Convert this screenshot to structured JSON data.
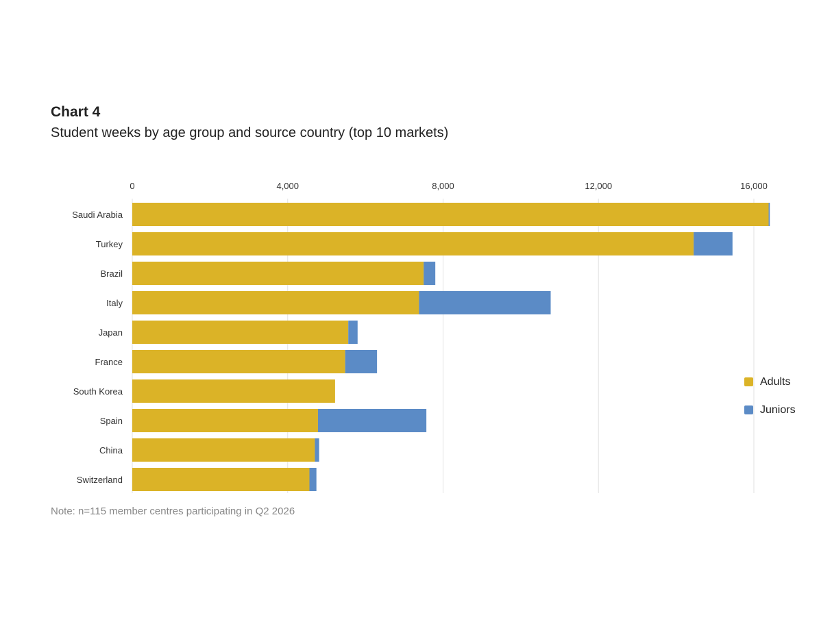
{
  "header": {
    "title": "Chart 4",
    "subtitle": "Student weeks by age group and source country (top 10 markets)"
  },
  "footer": {
    "note": "Note: n=115 member centres participating in Q2 2026"
  },
  "chart_data": {
    "type": "bar",
    "orientation": "horizontal",
    "stacked": true,
    "title": "Chart 4",
    "subtitle": "Student weeks by age group and source country (top 10 markets)",
    "categories": [
      "Saudi Arabia",
      "Turkey",
      "Brazil",
      "Italy",
      "Japan",
      "France",
      "South Korea",
      "Spain",
      "China",
      "Switzerland"
    ],
    "series": [
      {
        "name": "Adults",
        "color": "#DBB327",
        "values": [
          16380,
          14450,
          7500,
          7380,
          5560,
          5480,
          5220,
          4780,
          4700,
          4560
        ]
      },
      {
        "name": "Juniors",
        "color": "#5B8BC6",
        "values": [
          30,
          1000,
          300,
          3390,
          240,
          820,
          0,
          2790,
          110,
          180
        ]
      }
    ],
    "xlim": [
      0,
      16400
    ],
    "xticks": [
      0,
      4000,
      8000,
      12000,
      16000
    ],
    "xtick_labels": [
      "0",
      "4,000",
      "8,000",
      "12,000",
      "16,000"
    ],
    "xlabel": "",
    "ylabel": "",
    "grid": true,
    "axis_position": "top",
    "legend": {
      "placement": "right",
      "entries": [
        "Adults",
        "Juniors"
      ]
    }
  }
}
